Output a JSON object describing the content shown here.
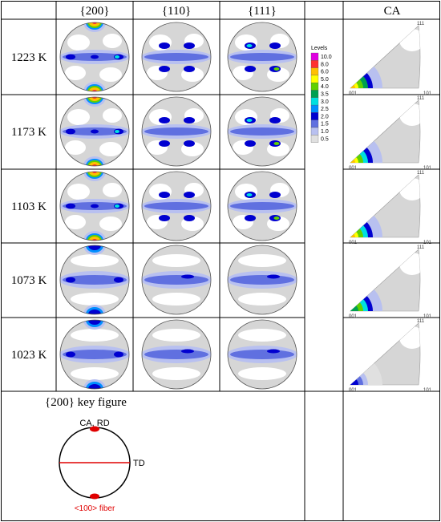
{
  "headers": {
    "col200": "{200}",
    "col110": "{110}",
    "col111": "{111}",
    "colCA": "CA"
  },
  "rows": [
    {
      "temp": "1223 K"
    },
    {
      "temp": "1173 K"
    },
    {
      "temp": "1103 K"
    },
    {
      "temp": "1073 K"
    },
    {
      "temp": "1023 K"
    }
  ],
  "legend": {
    "title": "Levels",
    "levels": [
      "10.0",
      "8.0",
      "6.0",
      "5.0",
      "4.0",
      "3.5",
      "3.0",
      "2.5",
      "2.0",
      "1.5",
      "1.0",
      "0.5"
    ],
    "colors": [
      "#e000e0",
      "#ff3030",
      "#ffc000",
      "#ffff00",
      "#60d000",
      "#00a050",
      "#00e0e0",
      "#0090ff",
      "#0000d0",
      "#6070e0",
      "#b8c0f0",
      "#e0e0e0"
    ]
  },
  "ipf_labels": {
    "corner001": "001",
    "corner101": "101",
    "corner111": "111"
  },
  "key_figure": {
    "title": "{200} key figure",
    "top_label": "CA, RD",
    "right_label": "TD",
    "bottom_label": "<100> fiber"
  },
  "colors": {
    "accent_red": "#e00000",
    "grid": "#000000",
    "background_gray": "#d6d6d6"
  }
}
